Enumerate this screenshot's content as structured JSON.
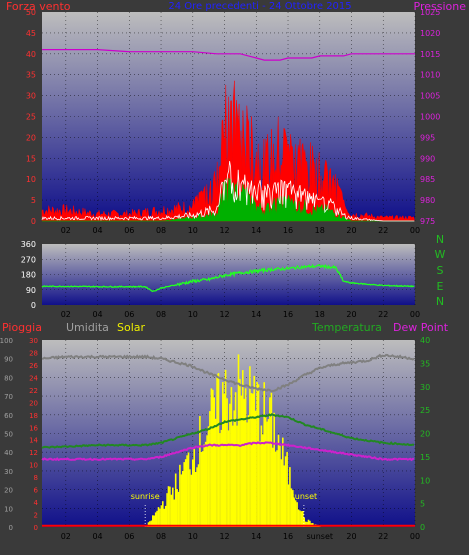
{
  "colors": {
    "background": "#3a3a3a",
    "plot_top": "#bdbdbd",
    "plot_bottom": "#10108a",
    "wind": "#ff0000",
    "wind_gust": "#ffffff",
    "wind_avg": "#00b000",
    "pressure": "#cc00cc",
    "direction": "#22ff22",
    "rain": "#ff0000",
    "humidity": "#808080",
    "solar": "#ffff00",
    "temperature": "#228822",
    "dewpoint": "#cc22cc",
    "axis_red": "#ff3030",
    "axis_green": "#22bb22",
    "axis_magenta": "#dd22dd",
    "axis_gray": "#a0a0a0",
    "axis_yellow": "#eeee00",
    "axis_white": "#ffffff",
    "title_blue": "#2222ff"
  },
  "top": {
    "left_label": "Forza vento",
    "title": "24 Ore precedenti - 24 Ottobre 2015",
    "right_label": "Pressione",
    "left_ticks": [
      "0",
      "5",
      "10",
      "15",
      "20",
      "25",
      "30",
      "35",
      "40",
      "45",
      "50"
    ],
    "right_ticks": [
      "975",
      "980",
      "985",
      "990",
      "995",
      "1000",
      "1005",
      "1010",
      "1015",
      "1020",
      "1025"
    ]
  },
  "middle": {
    "left_ticks": [
      "0",
      "90",
      "180",
      "270",
      "360"
    ],
    "compass": [
      "N",
      "W",
      "S",
      "E",
      "N"
    ]
  },
  "bottom": {
    "labels": {
      "rain": "Pioggia",
      "humidity": "Umidita",
      "solar": "Solar",
      "temperature": "Temperatura",
      "dewpoint": "Dew Point"
    },
    "humidity_ticks": [
      "0",
      "10",
      "20",
      "30",
      "40",
      "50",
      "60",
      "70",
      "80",
      "90",
      "100"
    ],
    "rain_ticks": [
      "0",
      "2",
      "4",
      "6",
      "8",
      "10",
      "12",
      "14",
      "16",
      "18",
      "20",
      "22",
      "24",
      "26",
      "28",
      "30"
    ],
    "temp_ticks": [
      "0",
      "5",
      "10",
      "15",
      "20",
      "25",
      "30",
      "35",
      "40"
    ],
    "sunrise_label": "sunrise",
    "sunset_label": "sunset",
    "sunset_axis_label": "sunset"
  },
  "x_ticks": [
    "02",
    "04",
    "06",
    "08",
    "10",
    "12",
    "14",
    "16",
    "18",
    "20",
    "22",
    "00"
  ],
  "x_ticks_bottom": [
    "02",
    "04",
    "06",
    "08",
    "10",
    "12",
    "14",
    "16",
    "sunset",
    "20",
    "22",
    "00"
  ],
  "chart_data": [
    {
      "type": "line",
      "x_unit": "hour",
      "xlim": [
        0.5,
        24
      ],
      "x": [
        0.5,
        2,
        4,
        6,
        8,
        10,
        11.5,
        12,
        12.5,
        13,
        13.5,
        14,
        14.5,
        15,
        15.5,
        16,
        16.5,
        17,
        17.5,
        18,
        18.5,
        19,
        19.5,
        20,
        22,
        24
      ],
      "series": [
        {
          "name": "Forza vento",
          "axis": "left",
          "values": [
            3,
            3,
            2,
            2,
            3,
            4,
            10,
            27,
            26,
            24,
            22,
            19,
            16,
            17,
            20,
            18,
            17,
            15,
            14,
            12,
            11,
            9,
            5,
            2,
            1,
            1
          ]
        },
        {
          "axis": "left",
          "values": [
            1,
            1,
            1,
            1,
            1,
            2,
            4,
            14,
            13,
            12,
            10,
            11,
            8,
            9,
            10,
            10,
            9,
            8,
            7,
            6,
            6,
            4,
            2,
            1,
            0,
            0
          ]
        },
        {
          "axis": "left",
          "values": [
            0,
            0,
            0,
            0,
            0,
            1,
            2,
            9,
            8,
            7,
            6,
            4,
            3,
            4,
            5,
            5,
            4,
            4,
            3,
            3,
            3,
            2,
            1,
            0,
            0,
            0
          ]
        },
        {
          "name": "Pressione",
          "axis": "right",
          "values": [
            1016,
            1016,
            1016,
            1015.5,
            1015.5,
            1015.5,
            1015,
            1015,
            1015,
            1015,
            1014.5,
            1014,
            1013.5,
            1013.5,
            1013.5,
            1014,
            1014,
            1014,
            1014,
            1014.5,
            1014.5,
            1014.5,
            1014.5,
            1015,
            1015,
            1015
          ]
        }
      ],
      "ylim_left": [
        0,
        50
      ],
      "ylim_right": [
        975,
        1025
      ]
    },
    {
      "type": "line",
      "x_unit": "hour",
      "xlim": [
        0.5,
        24
      ],
      "x": [
        0.5,
        2,
        4,
        6,
        7,
        7.5,
        8,
        9,
        10,
        11,
        12,
        13,
        14,
        15,
        16,
        17,
        18,
        19,
        19.5,
        20,
        22,
        24
      ],
      "series": [
        {
          "axis": "left",
          "values": [
            110,
            110,
            108,
            108,
            108,
            80,
            100,
            120,
            140,
            150,
            175,
            190,
            200,
            210,
            215,
            225,
            230,
            220,
            140,
            130,
            115,
            110
          ]
        }
      ],
      "ylim": [
        0,
        360
      ]
    },
    {
      "type": "area",
      "x_unit": "hour",
      "xlim": [
        0.5,
        24
      ],
      "x": [
        0.5,
        2,
        4,
        6,
        7,
        8,
        9,
        10,
        11,
        12,
        13,
        14,
        15,
        16,
        17,
        18,
        19,
        20,
        21,
        22,
        23,
        24
      ],
      "series": [
        {
          "name": "Umidita",
          "axis": "humidity",
          "values": [
            90,
            91,
            91,
            91,
            91,
            90,
            88,
            86,
            82,
            79,
            76,
            74,
            73,
            76,
            81,
            85,
            87,
            88,
            89,
            92,
            91,
            90
          ]
        },
        {
          "name": "Temperatura",
          "axis": "temp",
          "values": [
            17,
            17.2,
            17.5,
            17.5,
            17.5,
            18,
            19,
            20,
            21,
            22.5,
            23,
            23.5,
            24,
            23.5,
            22,
            21,
            20,
            19,
            18.5,
            18,
            17.8,
            17.5
          ]
        },
        {
          "name": "Dew Point",
          "axis": "temp",
          "values": [
            14.5,
            14.5,
            14.5,
            14.5,
            14.5,
            15,
            16,
            17,
            17.5,
            17.5,
            17.5,
            18,
            18,
            17.5,
            17,
            16.5,
            16,
            15.5,
            15,
            14.5,
            14.5,
            14.5
          ]
        },
        {
          "name": "Solar",
          "axis": "solar_rel",
          "values": [
            0,
            0,
            0,
            0,
            0,
            0.15,
            0.3,
            0.5,
            0.7,
            0.88,
            0.9,
            0.82,
            0.68,
            0.35,
            0.05,
            0,
            0,
            0,
            0,
            0,
            0,
            0
          ]
        },
        {
          "name": "Pioggia",
          "axis": "rain",
          "values": [
            0,
            0,
            0,
            0,
            0,
            0,
            0,
            0,
            0,
            0,
            0,
            0,
            0,
            0,
            0,
            0,
            0,
            0,
            0,
            0,
            0,
            0
          ]
        }
      ],
      "ylim_humidity": [
        0,
        100
      ],
      "ylim_rain": [
        0,
        30
      ],
      "ylim_temp": [
        0,
        40
      ],
      "sunrise_hour": 7,
      "sunset_hour": 17
    }
  ]
}
